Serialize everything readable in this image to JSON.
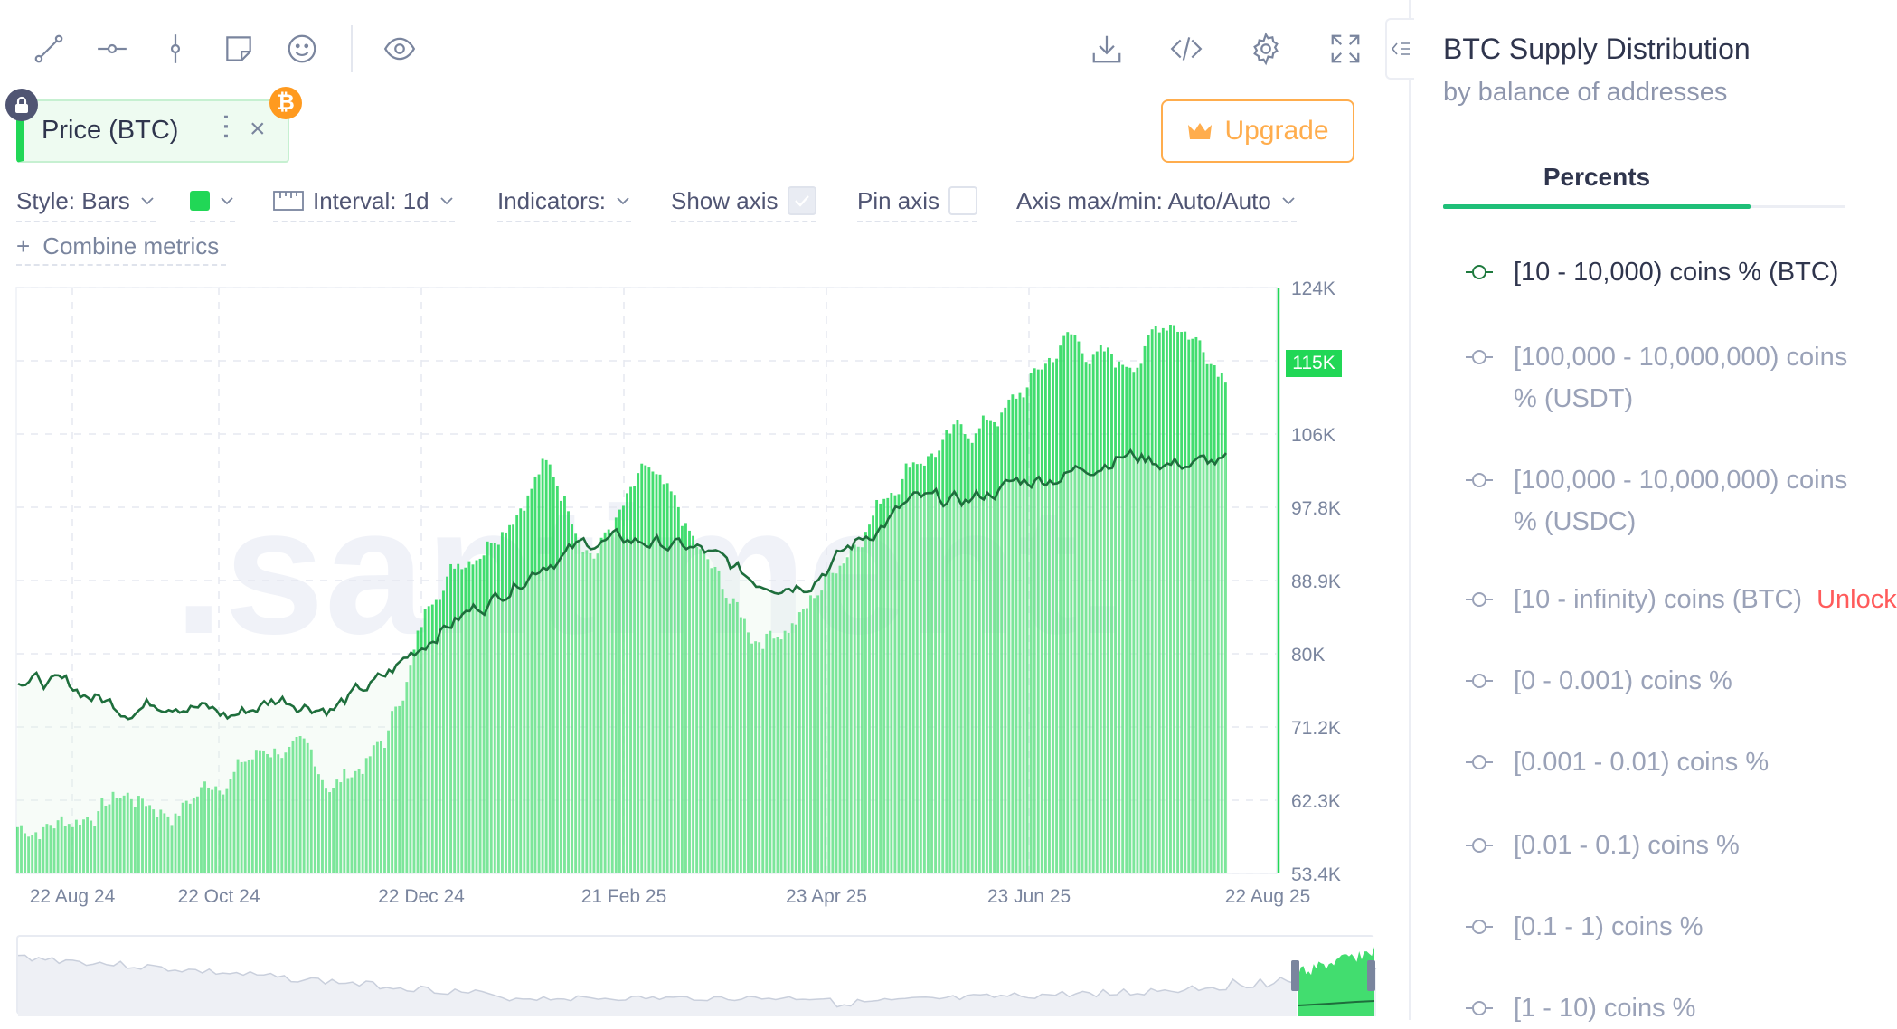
{
  "toolbar": {
    "tools": [
      "line-tool-icon",
      "horizontal-ray-icon",
      "vertical-line-icon",
      "note-icon",
      "emoji-icon",
      "eye-icon"
    ],
    "actions": [
      "download-icon",
      "embed-code-icon",
      "settings-gear-icon",
      "fullscreen-icon"
    ]
  },
  "metric": {
    "label": "Price (BTC)",
    "close": "×",
    "badge": "₿"
  },
  "upgrade": {
    "label": "Upgrade"
  },
  "settings": {
    "style": "Style: Bars",
    "interval": "Interval: 1d",
    "indicators": "Indicators:",
    "show_axis": "Show axis",
    "show_axis_checked": true,
    "pin_axis": "Pin axis",
    "pin_axis_checked": false,
    "axis_maxmin": "Axis max/min: Auto/Auto",
    "combine": "Combine metrics",
    "combine_plus": "+"
  },
  "watermark": ".santiment.",
  "colors": {
    "bars": "#21d756",
    "line": "#1e6e3c",
    "accent": "#1fbf78",
    "upgrade": "#ffad4d"
  },
  "chart_data": {
    "type": "bar",
    "title": "",
    "x_ticks": [
      "22 Aug 24",
      "22 Oct 24",
      "22 Dec 24",
      "21 Feb 25",
      "23 Apr 25",
      "23 Jun 25",
      "22 Aug 25"
    ],
    "y_ticks": [
      "124K",
      "115K",
      "106K",
      "97.8K",
      "88.9K",
      "80K",
      "71.2K",
      "62.3K",
      "53.4K"
    ],
    "ylim": [
      53400,
      124000
    ],
    "current_value_label": "115K",
    "series": [
      {
        "label": "Price (BTC)",
        "type": "bar",
        "color": "#21d756",
        "approx_monthly_values": [
          59000,
          60000,
          63000,
          61000,
          66000,
          69000,
          64000,
          69000,
          89000,
          95000,
          103000,
          93000,
          101000,
          91000,
          82000,
          85000,
          95000,
          104000,
          106000,
          110000,
          118000,
          114000,
          121000,
          115000
        ]
      },
      {
        "label": "[10 - 10,000) coins % (BTC)",
        "type": "line",
        "color": "#1e6e3c",
        "approx_monthly_values": [
          70,
          69,
          67,
          68,
          66,
          68,
          67,
          70,
          75,
          78,
          82,
          84,
          84,
          83,
          80,
          80,
          84,
          88,
          88,
          90,
          91,
          93,
          92,
          92
        ]
      }
    ]
  },
  "side": {
    "title": "BTC Supply Distribution",
    "subtitle": "by balance of addresses",
    "tab": "Percents",
    "metrics": [
      {
        "label": "[10 - 10,000) coins % (BTC)",
        "active": true
      },
      {
        "label": "[100,000 - 10,000,000) coins % (USDT)",
        "active": false
      },
      {
        "label": "[100,000 - 10,000,000) coins % (USDC)",
        "active": false
      },
      {
        "label": "[10 - infinity) coins (BTC)",
        "active": false,
        "extra": "Unlock"
      },
      {
        "label": "[0 - 0.001) coins %",
        "active": false
      },
      {
        "label": "[0.001 - 0.01) coins %",
        "active": false
      },
      {
        "label": "[0.01 - 0.1) coins %",
        "active": false
      },
      {
        "label": "[0.1 - 1) coins %",
        "active": false
      },
      {
        "label": "[1 - 10) coins %",
        "active": false
      }
    ]
  }
}
